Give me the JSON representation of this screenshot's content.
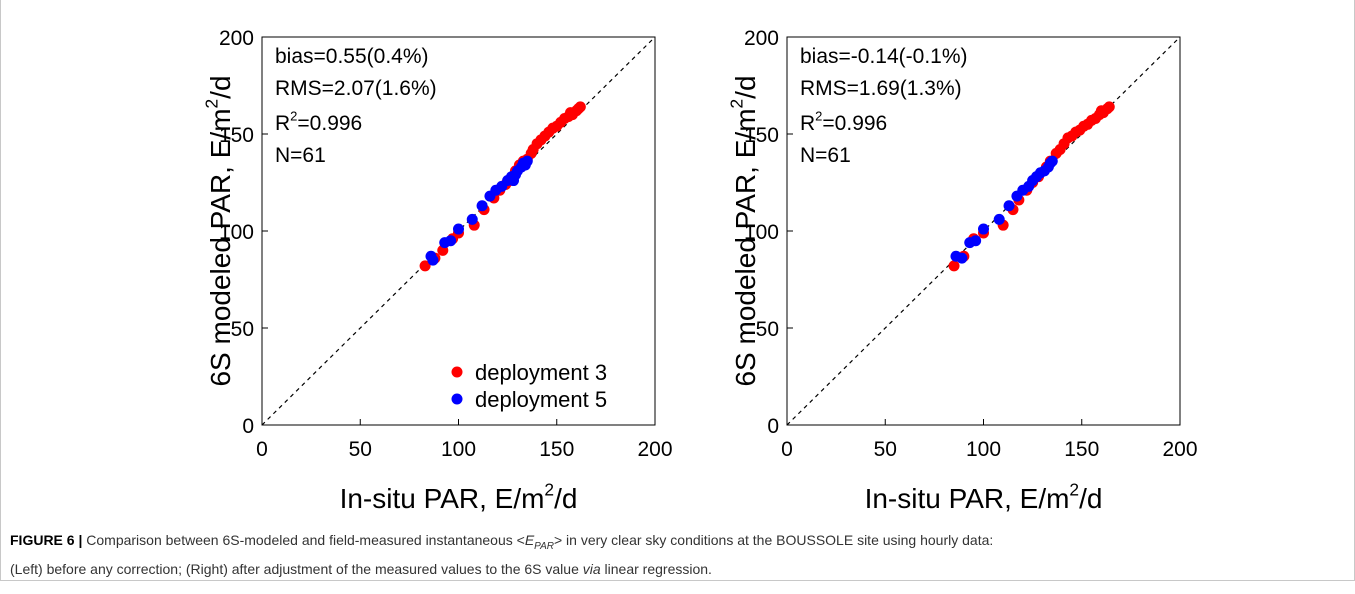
{
  "chart_data": [
    {
      "type": "scatter",
      "xlabel": [
        "In-situ PAR, E/m",
        "2",
        "/d"
      ],
      "ylabel": [
        "6S modeled PAR, E/m",
        "2",
        "/d"
      ],
      "annotations": [
        [
          "bias=0.55(0.4%)"
        ],
        [
          "RMS=2.07(1.6%)"
        ],
        [
          "R",
          "2",
          "=0.996"
        ],
        [
          "N=61"
        ]
      ],
      "xlim": [
        0,
        200
      ],
      "ylim": [
        0,
        200
      ],
      "xticks": [
        0,
        50,
        100,
        150,
        200
      ],
      "yticks": [
        0,
        50,
        100,
        150,
        200
      ],
      "one_to_one_line": true,
      "legend": "lower right",
      "series": [
        {
          "name": "deployment 3",
          "color": "#ff0000",
          "x": [
            83,
            88,
            92,
            97,
            100,
            108,
            113,
            118,
            121,
            124,
            126,
            129,
            131,
            133,
            135,
            137,
            138,
            140,
            142,
            144,
            146,
            148,
            150,
            152,
            154,
            156,
            158,
            160,
            161,
            162,
            157
          ],
          "y": [
            82,
            86,
            90,
            96,
            99,
            103,
            111,
            117,
            121,
            124,
            126,
            131,
            134,
            136,
            137,
            140,
            142,
            145,
            147,
            149,
            151,
            153,
            154,
            156,
            158,
            159,
            160,
            162,
            163,
            164,
            161
          ]
        },
        {
          "name": "deployment 5",
          "color": "#0000ff",
          "x": [
            86,
            87,
            93,
            96,
            100,
            107,
            112,
            116,
            119,
            122,
            125,
            127,
            129,
            130,
            132,
            134,
            135,
            133,
            128
          ],
          "y": [
            87,
            85,
            94,
            95,
            101,
            106,
            113,
            118,
            121,
            123,
            126,
            128,
            129,
            131,
            133,
            134,
            136,
            135,
            126
          ]
        }
      ]
    },
    {
      "type": "scatter",
      "xlabel": [
        "In-situ PAR, E/m",
        "2",
        "/d"
      ],
      "ylabel": [
        "6S modeled PAR, E/m",
        "2",
        "/d"
      ],
      "annotations": [
        [
          "bias=-0.14(-0.1%)"
        ],
        [
          "RMS=1.69(1.3%)"
        ],
        [
          "R",
          "2",
          "=0.996"
        ],
        [
          "N=61"
        ]
      ],
      "xlim": [
        0,
        200
      ],
      "ylim": [
        0,
        200
      ],
      "xticks": [
        0,
        50,
        100,
        150,
        200
      ],
      "yticks": [
        0,
        50,
        100,
        150,
        200
      ],
      "one_to_one_line": true,
      "series": [
        {
          "color": "#ff0000",
          "x": [
            85,
            90,
            95,
            100,
            110,
            115,
            118,
            122,
            125,
            128,
            132,
            134,
            137,
            139,
            141,
            143,
            145,
            147,
            149,
            151,
            153,
            155,
            157,
            159,
            161,
            163,
            164,
            160
          ],
          "y": [
            82,
            87,
            96,
            99,
            103,
            111,
            116,
            121,
            125,
            128,
            133,
            136,
            140,
            142,
            145,
            148,
            149,
            151,
            152,
            154,
            155,
            157,
            158,
            160,
            161,
            163,
            164,
            162
          ]
        },
        {
          "color": "#0000ff",
          "x": [
            86,
            89,
            93,
            96,
            100,
            108,
            113,
            117,
            120,
            123,
            125,
            127,
            129,
            131,
            133,
            134,
            135
          ],
          "y": [
            87,
            86,
            94,
            95,
            101,
            106,
            113,
            118,
            121,
            123,
            126,
            128,
            130,
            131,
            133,
            135,
            136
          ]
        }
      ]
    }
  ],
  "caption": {
    "lines": [
      [
        {
          "text": "FIGURE 6 |",
          "style": "bold"
        },
        {
          "text": " Comparison between 6S-modeled and field-measured instantaneous <",
          "style": "normal"
        },
        {
          "text": "E",
          "style": "italic"
        },
        {
          "text": "PAR",
          "style": "italic-sub"
        },
        {
          "text": "> in very clear sky conditions at the BOUSSOLE site using hourly data:",
          "style": "normal"
        }
      ],
      [
        {
          "text": "(Left) before any correction; (Right) after adjustment of the measured values to the 6S value ",
          "style": "normal"
        },
        {
          "text": "via",
          "style": "italic"
        },
        {
          "text": " linear regression.",
          "style": "normal"
        }
      ]
    ]
  }
}
